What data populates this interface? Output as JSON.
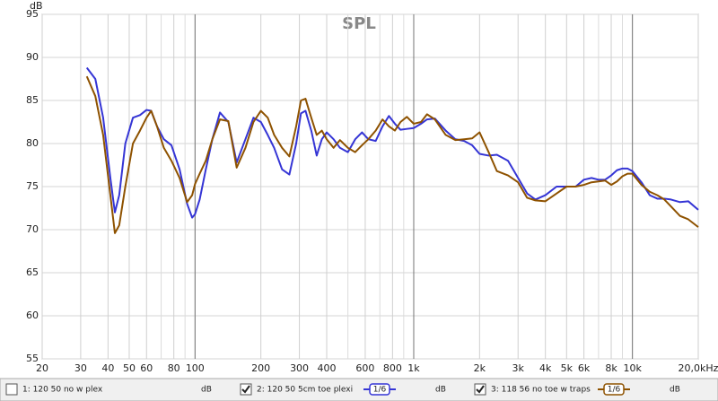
{
  "chart_data": {
    "type": "line",
    "title": "SPL",
    "ylabel": "dB",
    "xscale": "log",
    "grid": true,
    "xlim": [
      20,
      20000
    ],
    "ylim": [
      55,
      95
    ],
    "yticks": [
      55,
      60,
      65,
      70,
      75,
      80,
      85,
      90,
      95
    ],
    "xticks": [
      20,
      30,
      40,
      50,
      60,
      80,
      100,
      200,
      300,
      400,
      600,
      800,
      {
        "value": 1000,
        "label": "1k"
      },
      {
        "value": 2000,
        "label": "2k"
      },
      {
        "value": 3000,
        "label": "3k"
      },
      {
        "value": 4000,
        "label": "4k"
      },
      {
        "value": 5000,
        "label": "5k"
      },
      {
        "value": 6000,
        "label": "6k"
      },
      {
        "value": 8000,
        "label": "8k"
      },
      {
        "value": 10000,
        "label": "10k"
      },
      {
        "value": 20000,
        "label": "20,0kHz"
      }
    ],
    "xminorticks": [
      70,
      90,
      500,
      700,
      900,
      7000,
      9000
    ],
    "xmajorticks": [
      100,
      1000,
      10000
    ],
    "x": [
      32,
      35,
      38,
      41,
      43,
      45,
      48,
      52,
      56,
      60,
      63,
      67,
      72,
      78,
      85,
      92,
      97,
      100,
      105,
      112,
      120,
      130,
      142,
      155,
      170,
      185,
      200,
      215,
      230,
      250,
      270,
      290,
      305,
      320,
      340,
      360,
      380,
      400,
      430,
      460,
      500,
      540,
      580,
      620,
      670,
      720,
      770,
      820,
      870,
      930,
      1000,
      1080,
      1150,
      1250,
      1400,
      1550,
      1700,
      1850,
      2000,
      2200,
      2400,
      2700,
      3000,
      3300,
      3600,
      4000,
      4500,
      5000,
      5500,
      6000,
      6500,
      7000,
      7500,
      8000,
      8500,
      9000,
      9500,
      10000,
      11000,
      12000,
      13000,
      14000,
      15000,
      16500,
      18000,
      20000
    ],
    "series": [
      {
        "name": "1: 120 50 no w plex",
        "color": "#cc33cc",
        "checked": false,
        "unit": "dB"
      },
      {
        "name": "2: 120 50 5cm toe plexi",
        "color": "#3535d5",
        "checked": true,
        "smoothing": "1/6",
        "unit": "dB",
        "values": [
          88.8,
          87.5,
          83,
          76,
          72,
          74,
          80,
          83,
          83.3,
          83.9,
          83.8,
          82,
          80.5,
          79.8,
          77,
          73,
          71.4,
          71.8,
          73.5,
          77,
          80.5,
          83.6,
          82.5,
          77.8,
          80.5,
          83,
          82.5,
          81,
          79.5,
          77,
          76.4,
          80,
          83.5,
          83.8,
          81.5,
          78.6,
          80.5,
          81.3,
          80.5,
          79.5,
          79,
          80.5,
          81.3,
          80.5,
          80.3,
          82,
          83.2,
          82.3,
          81.6,
          81.7,
          81.8,
          82.3,
          82.8,
          82.9,
          81.5,
          80.5,
          80.3,
          79.8,
          78.8,
          78.6,
          78.7,
          78,
          76,
          74.2,
          73.5,
          74,
          75,
          75,
          75,
          75.8,
          76,
          75.8,
          75.8,
          76.3,
          76.9,
          77.1,
          77.1,
          76.8,
          75.5,
          74,
          73.6,
          73.6,
          73.5,
          73.2,
          73.3,
          72.3
        ]
      },
      {
        "name": "3: 118 56 no toe w traps",
        "color": "#8e5200",
        "checked": true,
        "smoothing": "1/6",
        "unit": "dB",
        "values": [
          87.8,
          85.5,
          81,
          74,
          69.6,
          70.5,
          75,
          80,
          81.5,
          83,
          83.8,
          82,
          79.5,
          78,
          76,
          73.2,
          74,
          75.3,
          76.5,
          78,
          80.5,
          82.8,
          82.6,
          77.2,
          79.5,
          82.5,
          83.8,
          83,
          81,
          79.5,
          78.5,
          82,
          85,
          85.2,
          83,
          81,
          81.5,
          80.5,
          79.5,
          80.4,
          79.5,
          79,
          79.8,
          80.5,
          81.5,
          82.8,
          82,
          81.5,
          82.5,
          83.1,
          82.3,
          82.5,
          83.4,
          82.8,
          81,
          80.4,
          80.5,
          80.6,
          81.3,
          79,
          76.8,
          76.3,
          75.5,
          73.7,
          73.4,
          73.3,
          74.2,
          75,
          75,
          75.2,
          75.5,
          75.6,
          75.7,
          75.2,
          75.6,
          76.2,
          76.5,
          76.5,
          75.2,
          74.4,
          74,
          73.5,
          72.7,
          71.6,
          71.2,
          70.3
        ]
      }
    ]
  }
}
